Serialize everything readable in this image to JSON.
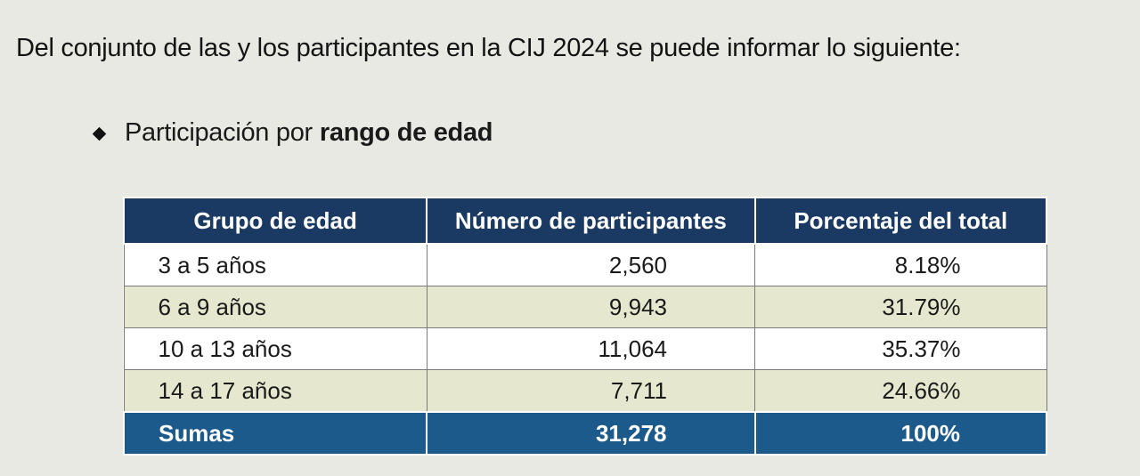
{
  "intro": "Del conjunto de las y los participantes en la CIJ 2024 se puede informar lo siguiente:",
  "bullet": {
    "normal": "Participación por",
    "bold": "rango de edad"
  },
  "table": {
    "headers": [
      "Grupo de edad",
      "Número de participantes",
      "Porcentaje del total"
    ],
    "rows": [
      {
        "age": "3 a 5 años",
        "count": "2,560",
        "pct": "8.18%"
      },
      {
        "age": "6 a 9 años",
        "count": "9,943",
        "pct": "31.79%"
      },
      {
        "age": "10 a 13 años",
        "count": "11,064",
        "pct": "35.37%"
      },
      {
        "age": "14 a 17 años",
        "count": "7,711",
        "pct": "24.66%"
      }
    ],
    "total": {
      "label": "Sumas",
      "count": "31,278",
      "pct": "100%"
    }
  },
  "colors": {
    "header_bg": "#1b3a63",
    "total_bg": "#1d5a8c",
    "stripe_bg": "#e5e8cf"
  }
}
